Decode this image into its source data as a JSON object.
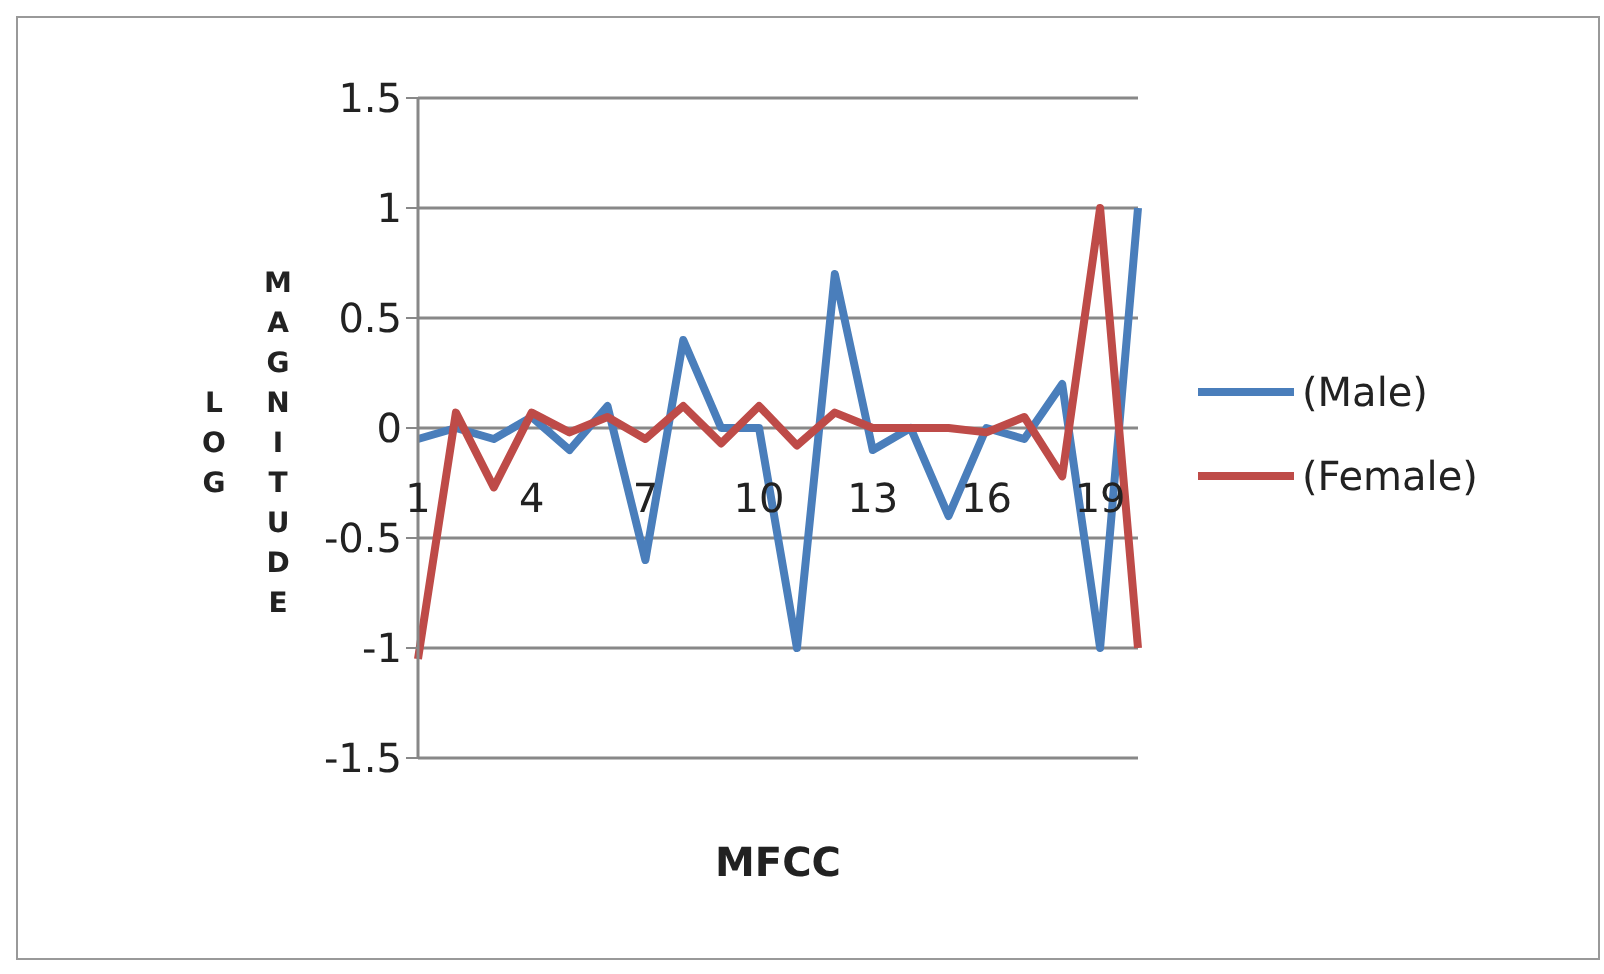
{
  "chart_data": {
    "type": "line",
    "xlabel": "MFCC",
    "ylabel": "LOG MAGNITUDE",
    "categories": [
      "1",
      null,
      null,
      "4",
      null,
      null,
      "7",
      null,
      null,
      "10",
      null,
      null,
      "13",
      null,
      null,
      "16",
      null,
      null,
      "19",
      null
    ],
    "series": [
      {
        "name": "(Male)",
        "color": "#4a7ebb",
        "values": [
          -0.05,
          0.0,
          -0.05,
          0.05,
          -0.1,
          0.1,
          -0.6,
          0.4,
          0.0,
          0.0,
          -1.0,
          0.7,
          -0.1,
          0.0,
          -0.4,
          0.0,
          -0.05,
          0.2,
          -1.0,
          1.0
        ]
      },
      {
        "name": "(Female)",
        "color": "#be4b48",
        "values": [
          -1.05,
          0.07,
          -0.27,
          0.07,
          -0.02,
          0.05,
          -0.05,
          0.1,
          -0.07,
          0.1,
          -0.08,
          0.07,
          0.0,
          0.0,
          0.0,
          -0.02,
          0.05,
          -0.22,
          1.0,
          -1.0
        ]
      }
    ],
    "ylim": [
      -1.5,
      1.5
    ],
    "yticks": [
      -1.5,
      -1,
      -0.5,
      0,
      0.5,
      1,
      1.5
    ],
    "grid": "y",
    "legend": "right"
  }
}
